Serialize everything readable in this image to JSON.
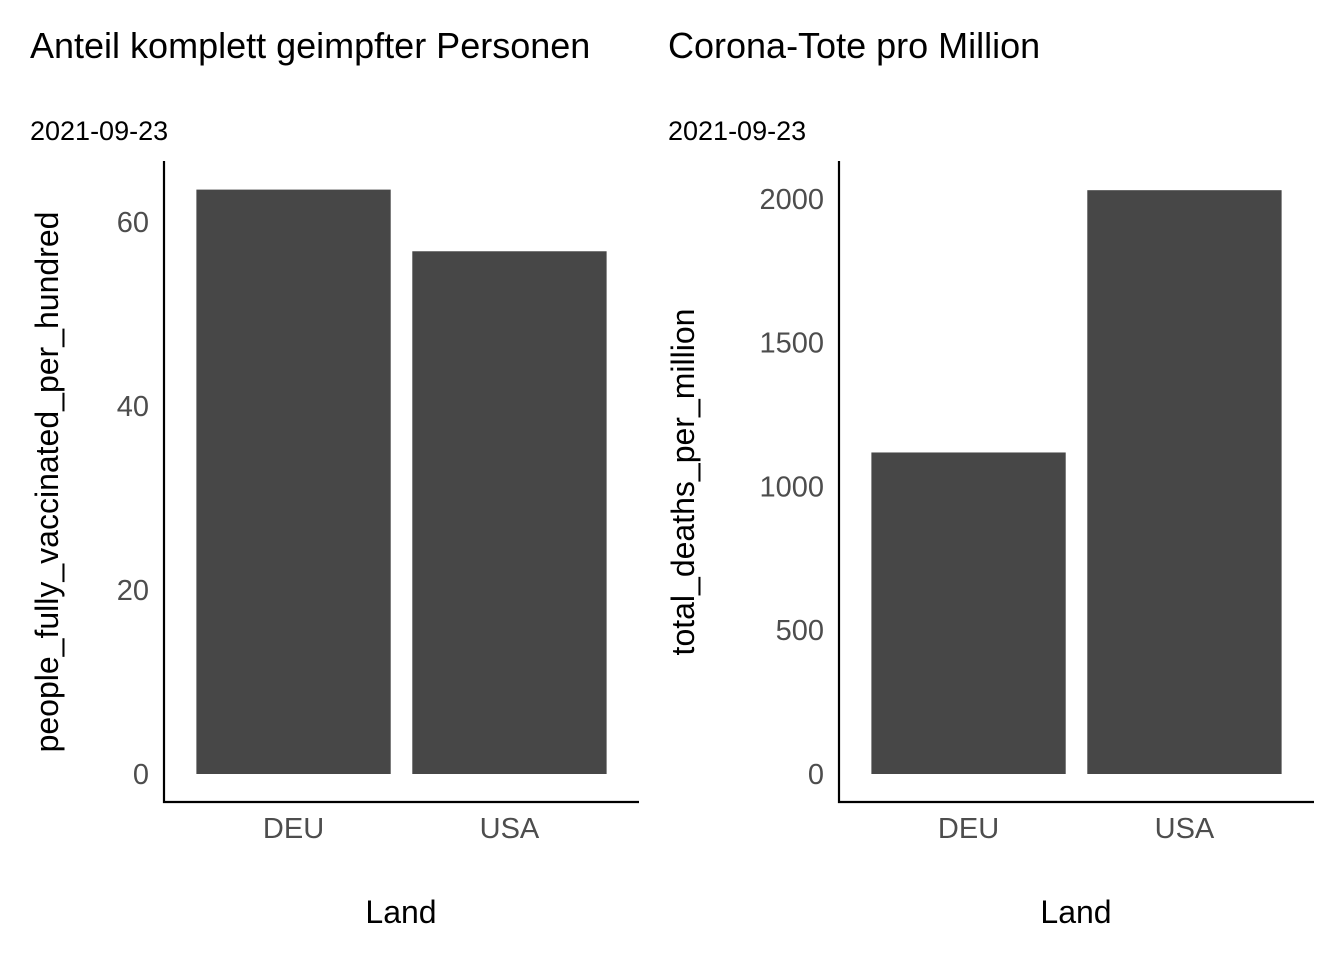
{
  "chart_data": [
    {
      "type": "bar",
      "title": "Anteil komplett geimpfter Personen",
      "subtitle": "2021-09-23",
      "xlabel": "Land",
      "ylabel": "people_fully_vaccinated_per_hundred",
      "categories": [
        "DEU",
        "USA"
      ],
      "values": [
        63.5,
        56.8
      ],
      "ylim": [
        0,
        66.5
      ],
      "yticks": [
        0,
        20,
        40,
        60
      ],
      "bar_color": "#474747",
      "grid": false
    },
    {
      "type": "bar",
      "title": "Corona-Tote pro Million",
      "subtitle": "2021-09-23",
      "xlabel": "Land",
      "ylabel": "total_deaths_per_million",
      "categories": [
        "DEU",
        "USA"
      ],
      "values": [
        1118,
        2030
      ],
      "ylim": [
        0,
        2128
      ],
      "yticks": [
        0,
        500,
        1000,
        1500,
        2000
      ],
      "bar_color": "#474747",
      "grid": false
    }
  ]
}
